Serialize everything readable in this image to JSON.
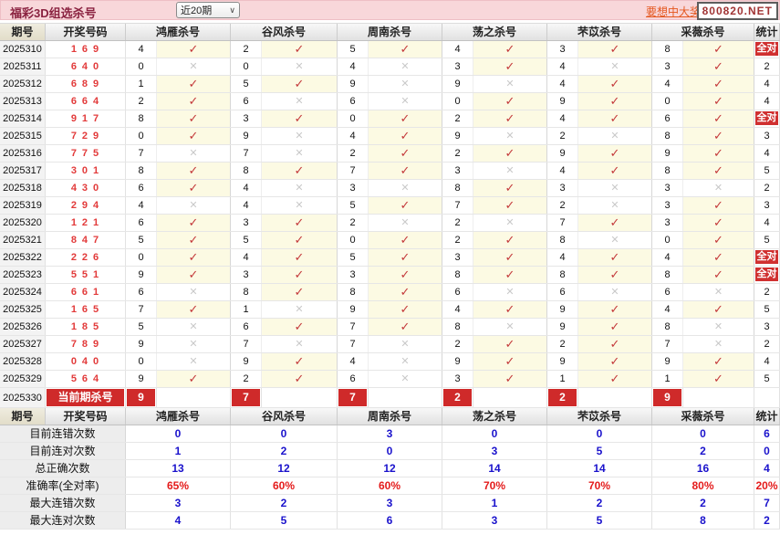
{
  "header": {
    "title": "福彩3D组选杀号",
    "range_select": "近20期",
    "promo_text": "要想中大奖，天",
    "site_box": "800820.NET"
  },
  "colors": {
    "topbar_pink": "#f8d7da",
    "title_maroon": "#8a2240",
    "promo_orange": "#e4571f",
    "badge_red": "#cf2a2a",
    "check_red": "#c4393a",
    "cross_gray": "#c9c9c9",
    "check_cell_cream": "#fcfae3",
    "draw_number_red": "#e23a3a",
    "stat_value_blue": "#1a12cc",
    "stat_value_red": "#e41b1b"
  },
  "table": {
    "columns": [
      "期号",
      "开奖号码",
      "鸿雁杀号",
      "谷风杀号",
      "周南杀号",
      "荡之杀号",
      "芣苡杀号",
      "采薇杀号",
      "统计"
    ],
    "all_correct_label": "全对",
    "rows": [
      {
        "period": "2025310",
        "draw": "169",
        "kills": [
          [
            "4",
            1
          ],
          [
            "2",
            1
          ],
          [
            "5",
            1
          ],
          [
            "4",
            1
          ],
          [
            "3",
            1
          ],
          [
            "8",
            1
          ]
        ],
        "stat": "全对"
      },
      {
        "period": "2025311",
        "draw": "640",
        "kills": [
          [
            "0",
            0
          ],
          [
            "0",
            0
          ],
          [
            "4",
            0
          ],
          [
            "3",
            1
          ],
          [
            "4",
            0
          ],
          [
            "3",
            1
          ]
        ],
        "stat": "2"
      },
      {
        "period": "2025312",
        "draw": "689",
        "kills": [
          [
            "1",
            1
          ],
          [
            "5",
            1
          ],
          [
            "9",
            0
          ],
          [
            "9",
            0
          ],
          [
            "4",
            1
          ],
          [
            "4",
            1
          ]
        ],
        "stat": "4"
      },
      {
        "period": "2025313",
        "draw": "664",
        "kills": [
          [
            "2",
            1
          ],
          [
            "6",
            0
          ],
          [
            "6",
            0
          ],
          [
            "0",
            1
          ],
          [
            "9",
            1
          ],
          [
            "0",
            1
          ]
        ],
        "stat": "4"
      },
      {
        "period": "2025314",
        "draw": "917",
        "kills": [
          [
            "8",
            1
          ],
          [
            "3",
            1
          ],
          [
            "0",
            1
          ],
          [
            "2",
            1
          ],
          [
            "4",
            1
          ],
          [
            "6",
            1
          ]
        ],
        "stat": "全对"
      },
      {
        "period": "2025315",
        "draw": "729",
        "kills": [
          [
            "0",
            1
          ],
          [
            "9",
            0
          ],
          [
            "4",
            1
          ],
          [
            "9",
            0
          ],
          [
            "2",
            0
          ],
          [
            "8",
            1
          ]
        ],
        "stat": "3"
      },
      {
        "period": "2025316",
        "draw": "775",
        "kills": [
          [
            "7",
            0
          ],
          [
            "7",
            0
          ],
          [
            "2",
            1
          ],
          [
            "2",
            1
          ],
          [
            "9",
            1
          ],
          [
            "9",
            1
          ]
        ],
        "stat": "4"
      },
      {
        "period": "2025317",
        "draw": "301",
        "kills": [
          [
            "8",
            1
          ],
          [
            "8",
            1
          ],
          [
            "7",
            1
          ],
          [
            "3",
            0
          ],
          [
            "4",
            1
          ],
          [
            "8",
            1
          ]
        ],
        "stat": "5"
      },
      {
        "period": "2025318",
        "draw": "430",
        "kills": [
          [
            "6",
            1
          ],
          [
            "4",
            0
          ],
          [
            "3",
            0
          ],
          [
            "8",
            1
          ],
          [
            "3",
            0
          ],
          [
            "3",
            0
          ]
        ],
        "stat": "2"
      },
      {
        "period": "2025319",
        "draw": "294",
        "kills": [
          [
            "4",
            0
          ],
          [
            "4",
            0
          ],
          [
            "5",
            1
          ],
          [
            "7",
            1
          ],
          [
            "2",
            0
          ],
          [
            "3",
            1
          ]
        ],
        "stat": "3"
      },
      {
        "period": "2025320",
        "draw": "121",
        "kills": [
          [
            "6",
            1
          ],
          [
            "3",
            1
          ],
          [
            "2",
            0
          ],
          [
            "2",
            0
          ],
          [
            "7",
            1
          ],
          [
            "3",
            1
          ]
        ],
        "stat": "4"
      },
      {
        "period": "2025321",
        "draw": "847",
        "kills": [
          [
            "5",
            1
          ],
          [
            "5",
            1
          ],
          [
            "0",
            1
          ],
          [
            "2",
            1
          ],
          [
            "8",
            0
          ],
          [
            "0",
            1
          ]
        ],
        "stat": "5"
      },
      {
        "period": "2025322",
        "draw": "226",
        "kills": [
          [
            "0",
            1
          ],
          [
            "4",
            1
          ],
          [
            "5",
            1
          ],
          [
            "3",
            1
          ],
          [
            "4",
            1
          ],
          [
            "4",
            1
          ]
        ],
        "stat": "全对"
      },
      {
        "period": "2025323",
        "draw": "551",
        "kills": [
          [
            "9",
            1
          ],
          [
            "3",
            1
          ],
          [
            "3",
            1
          ],
          [
            "8",
            1
          ],
          [
            "8",
            1
          ],
          [
            "8",
            1
          ]
        ],
        "stat": "全对"
      },
      {
        "period": "2025324",
        "draw": "661",
        "kills": [
          [
            "6",
            0
          ],
          [
            "8",
            1
          ],
          [
            "8",
            1
          ],
          [
            "6",
            0
          ],
          [
            "6",
            0
          ],
          [
            "6",
            0
          ]
        ],
        "stat": "2"
      },
      {
        "period": "2025325",
        "draw": "165",
        "kills": [
          [
            "7",
            1
          ],
          [
            "1",
            0
          ],
          [
            "9",
            1
          ],
          [
            "4",
            1
          ],
          [
            "9",
            1
          ],
          [
            "4",
            1
          ]
        ],
        "stat": "5"
      },
      {
        "period": "2025326",
        "draw": "185",
        "kills": [
          [
            "5",
            0
          ],
          [
            "6",
            1
          ],
          [
            "7",
            1
          ],
          [
            "8",
            0
          ],
          [
            "9",
            1
          ],
          [
            "8",
            0
          ]
        ],
        "stat": "3"
      },
      {
        "period": "2025327",
        "draw": "789",
        "kills": [
          [
            "9",
            0
          ],
          [
            "7",
            0
          ],
          [
            "7",
            0
          ],
          [
            "2",
            1
          ],
          [
            "2",
            1
          ],
          [
            "7",
            0
          ]
        ],
        "stat": "2"
      },
      {
        "period": "2025328",
        "draw": "040",
        "kills": [
          [
            "0",
            0
          ],
          [
            "9",
            1
          ],
          [
            "4",
            0
          ],
          [
            "9",
            1
          ],
          [
            "9",
            1
          ],
          [
            "9",
            1
          ]
        ],
        "stat": "4"
      },
      {
        "period": "2025329",
        "draw": "564",
        "kills": [
          [
            "9",
            1
          ],
          [
            "2",
            1
          ],
          [
            "6",
            0
          ],
          [
            "3",
            1
          ],
          [
            "1",
            1
          ],
          [
            "1",
            1
          ]
        ],
        "stat": "5"
      }
    ],
    "current_row": {
      "period": "2025330",
      "label": "当前期杀号",
      "kills": [
        "9",
        "7",
        "7",
        "2",
        "2",
        "9"
      ]
    },
    "stats": [
      {
        "label": "目前连错次数",
        "values": [
          "0",
          "0",
          "3",
          "0",
          "0",
          "0"
        ],
        "total": "6"
      },
      {
        "label": "目前连对次数",
        "values": [
          "1",
          "2",
          "0",
          "3",
          "5",
          "2"
        ],
        "total": "0"
      },
      {
        "label": "总正确次数",
        "values": [
          "13",
          "12",
          "12",
          "14",
          "14",
          "16"
        ],
        "total": "4"
      },
      {
        "label": "准确率(全对率)",
        "values": [
          "65%",
          "60%",
          "60%",
          "70%",
          "70%",
          "80%"
        ],
        "total": "20%"
      },
      {
        "label": "最大连错次数",
        "values": [
          "3",
          "2",
          "3",
          "1",
          "2",
          "2"
        ],
        "total": "7"
      },
      {
        "label": "最大连对次数",
        "values": [
          "4",
          "5",
          "6",
          "3",
          "5",
          "8"
        ],
        "total": "2"
      }
    ],
    "marks": {
      "check": "✓",
      "cross": "✕"
    }
  }
}
